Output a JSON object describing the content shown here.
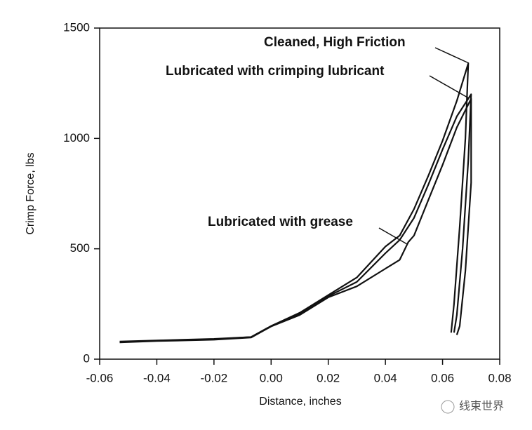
{
  "chart_data": {
    "type": "line",
    "xlabel": "Distance, inches",
    "ylabel": "Crimp Force, lbs",
    "xlim": [
      -0.06,
      0.08
    ],
    "ylim": [
      0,
      1500
    ],
    "xticks": [
      {
        "value": -0.06,
        "label": "-0.06"
      },
      {
        "value": -0.04,
        "label": "-0.04"
      },
      {
        "value": -0.02,
        "label": "-0.02"
      },
      {
        "value": 0,
        "label": "0.00"
      },
      {
        "value": 0.02,
        "label": "0.02"
      },
      {
        "value": 0.04,
        "label": "0.04"
      },
      {
        "value": 0.06,
        "label": "0.06"
      },
      {
        "value": 0.08,
        "label": "0.08"
      }
    ],
    "yticks": [
      0,
      500,
      1000,
      1500
    ],
    "series": [
      {
        "name": "Cleaned, High Friction",
        "color": "#111111",
        "x": [
          -0.053,
          -0.04,
          -0.02,
          -0.007,
          0,
          0.01,
          0.02,
          0.03,
          0.04,
          0.045,
          0.05,
          0.055,
          0.06,
          0.065,
          0.069,
          0.068,
          0.066,
          0.064,
          0.063
        ],
        "values": [
          80,
          85,
          92,
          100,
          150,
          210,
          290,
          370,
          510,
          560,
          680,
          830,
          990,
          1170,
          1340,
          1000,
          600,
          250,
          120
        ]
      },
      {
        "name": "Lubricated with crimping lubricant",
        "color": "#111111",
        "x": [
          -0.053,
          -0.04,
          -0.02,
          -0.007,
          0,
          0.01,
          0.02,
          0.03,
          0.04,
          0.045,
          0.05,
          0.055,
          0.06,
          0.065,
          0.07,
          0.069,
          0.067,
          0.065,
          0.064
        ],
        "values": [
          78,
          84,
          90,
          100,
          150,
          205,
          285,
          350,
          480,
          540,
          640,
          790,
          950,
          1100,
          1200,
          900,
          500,
          200,
          120
        ]
      },
      {
        "name": "Lubricated with grease",
        "color": "#111111",
        "x": [
          -0.053,
          -0.04,
          -0.02,
          -0.007,
          0,
          0.01,
          0.02,
          0.03,
          0.04,
          0.045,
          0.048,
          0.05,
          0.055,
          0.06,
          0.065,
          0.07,
          0.07,
          0.068,
          0.066,
          0.065
        ],
        "values": [
          76,
          82,
          88,
          98,
          148,
          200,
          280,
          330,
          410,
          450,
          530,
          560,
          720,
          880,
          1050,
          1180,
          800,
          400,
          150,
          110
        ]
      }
    ],
    "watermark": "线束世界"
  }
}
